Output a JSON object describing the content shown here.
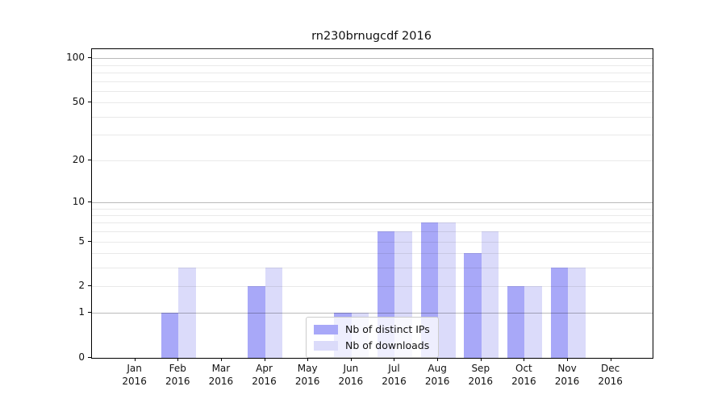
{
  "chart_data": {
    "type": "bar",
    "title": "rn230brnugcdf 2016",
    "categories": [
      "Jan",
      "Feb",
      "Mar",
      "Apr",
      "May",
      "Jun",
      "Jul",
      "Aug",
      "Sep",
      "Oct",
      "Nov",
      "Dec"
    ],
    "x_year": "2016",
    "series": [
      {
        "name": "Nb of distinct IPs",
        "color": "#a8a8f8",
        "values": [
          0,
          1,
          0,
          2,
          0,
          1,
          6,
          7,
          4,
          2,
          3,
          0
        ]
      },
      {
        "name": "Nb of downloads",
        "color": "#dbdbfa",
        "values": [
          0,
          3,
          0,
          3,
          0,
          1,
          6,
          7,
          6,
          2,
          3,
          0
        ]
      }
    ],
    "y_scale": "log10(1+v)",
    "ylim": [
      0,
      115
    ],
    "y_tick_labels": [
      0,
      1,
      2,
      5,
      10,
      20,
      50,
      100
    ],
    "grid": {
      "major": [
        1,
        10,
        100
      ],
      "minor": [
        2,
        3,
        4,
        5,
        6,
        7,
        8,
        9,
        20,
        30,
        40,
        50,
        60,
        70,
        80,
        90
      ]
    },
    "legend": {
      "entries": [
        "Nb of distinct IPs",
        "Nb of downloads"
      ],
      "position": "lower center"
    }
  }
}
